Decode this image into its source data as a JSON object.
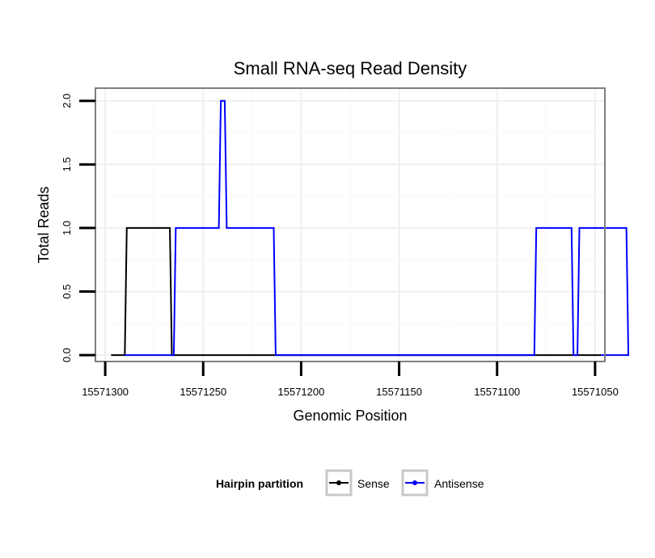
{
  "chart_data": {
    "type": "line",
    "title": "Small RNA-seq Read Density",
    "xlabel": "Genomic Position",
    "ylabel": "Total Reads",
    "xlim": [
      15571305,
      15571045
    ],
    "x_reversed": true,
    "ylim": [
      -0.05,
      2.1
    ],
    "x_ticks": [
      15571300,
      15571250,
      15571200,
      15571150,
      15571100,
      15571050
    ],
    "x_tick_labels": [
      "15571300",
      "15571250",
      "15571200",
      "15571150",
      "15571100",
      "15571050"
    ],
    "y_ticks": [
      0.0,
      0.5,
      1.0,
      1.5,
      2.0
    ],
    "y_tick_labels": [
      "0.0",
      "0.5",
      "1.0",
      "1.5",
      "2.0"
    ],
    "grid": true,
    "legend": {
      "title": "Hairpin partition",
      "position": "bottom"
    },
    "series": [
      {
        "name": "Sense",
        "color": "#000000",
        "x": [
          15571297,
          15571290,
          15571289,
          15571267,
          15571266,
          15571047
        ],
        "y": [
          0,
          0,
          1,
          1,
          0,
          0
        ]
      },
      {
        "name": "Antisense",
        "color": "#0000ff",
        "x": [
          15571290,
          15571265,
          15571264,
          15571242,
          15571241,
          15571239,
          15571238,
          15571236,
          15571235,
          15571214,
          15571213,
          15571081,
          15571080,
          15571062,
          15571061,
          15571059,
          15571058,
          15571034,
          15571033,
          15571047
        ],
        "y": [
          0,
          0,
          1,
          1,
          2,
          2,
          1,
          1,
          1,
          1,
          0,
          0,
          1,
          1,
          0,
          0,
          1,
          1,
          0,
          0
        ]
      }
    ]
  }
}
